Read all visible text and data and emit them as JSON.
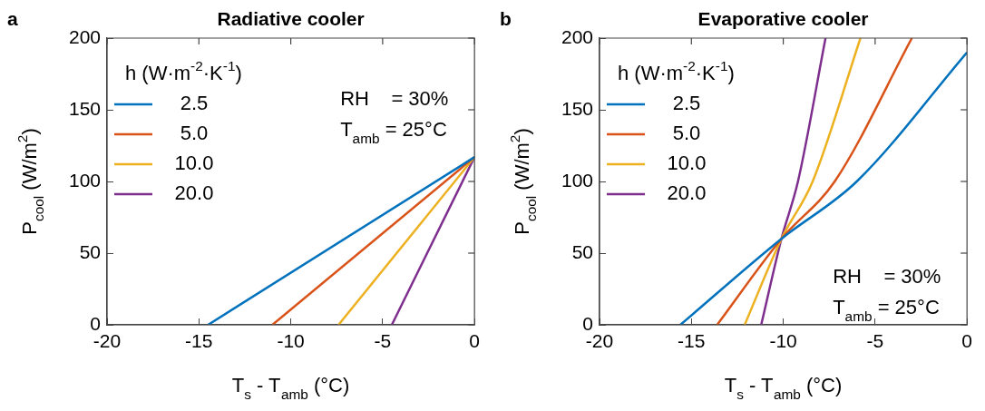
{
  "chart_data": [
    {
      "type": "line",
      "title": "Radiative cooler",
      "xlabel": "T$_{s}$ - T$_{amb}$ (°C)",
      "ylabel": "P$_{cool}$ (W/m$^{2}$)",
      "legend_title": "h (W·m$^{-2}$·K$^{-1}$)",
      "annotations": [
        "a",
        "RH    = 30%",
        "T$_{amb}$ = 25°C"
      ],
      "series": [
        {
          "name": "2.5",
          "color": "#0072bd",
          "x": [
            -14.5,
            0
          ],
          "values": [
            0,
            117
          ]
        },
        {
          "name": "5.0",
          "color": "#d95319",
          "x": [
            -11,
            0
          ],
          "values": [
            0,
            117
          ]
        },
        {
          "name": "10.0",
          "color": "#edb120",
          "x": [
            -7.4,
            0
          ],
          "values": [
            0,
            117
          ]
        },
        {
          "name": "20.0",
          "color": "#7e2f8e",
          "x": [
            -4.5,
            0
          ],
          "values": [
            0,
            117
          ]
        }
      ],
      "xlim": [
        -20,
        0
      ],
      "xticks": [
        -20,
        -15,
        -10,
        -5,
        0
      ],
      "ylim": [
        0,
        200
      ],
      "yticks": [
        0,
        50,
        100,
        150,
        200
      ],
      "legend": "top left",
      "marker": "none",
      "line_style": "solid"
    },
    {
      "type": "line",
      "title": "Evaporative cooler",
      "xlabel": "T$_{s}$ - T$_{amb}$ (°C)",
      "ylabel": "P$_{cool}$ (W/m$^{2}$)",
      "legend_title": "h (W·m$^{-2}$·K$^{-1}$)",
      "annotations": [
        "b",
        "RH    = 30%",
        "T$_{amb}$ = 25°C"
      ],
      "series": [
        {
          "name": "2.5",
          "color": "#0072bd",
          "x": [
            -15.6,
            -10.1,
            -6,
            0
          ],
          "values": [
            0,
            60,
            100,
            190
          ]
        },
        {
          "name": "5.0",
          "color": "#d95319",
          "x": [
            -13.6,
            -10.1,
            -7.2,
            -3
          ],
          "values": [
            0,
            60,
            100,
            200
          ]
        },
        {
          "name": "10.0",
          "color": "#edb120",
          "x": [
            -12.1,
            -10.1,
            -8.4,
            -5.8
          ],
          "values": [
            0,
            60,
            100,
            200
          ]
        },
        {
          "name": "20.0",
          "color": "#7e2f8e",
          "x": [
            -11.2,
            -10.1,
            -9.2,
            -7.7
          ],
          "values": [
            0,
            60,
            100,
            200
          ]
        }
      ],
      "xlim": [
        -20,
        0
      ],
      "xticks": [
        -20,
        -15,
        -10,
        -5,
        0
      ],
      "ylim": [
        0,
        200
      ],
      "yticks": [
        0,
        50,
        100,
        150,
        200
      ],
      "legend": "top left",
      "marker": "none",
      "line_style": "solid"
    }
  ]
}
